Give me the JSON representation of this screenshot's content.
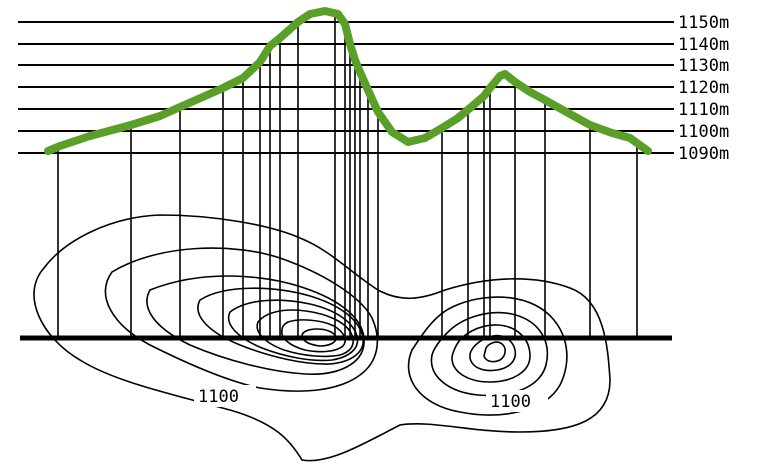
{
  "diagram": {
    "elevation_labels": [
      "1150m",
      "1140m",
      "1130m",
      "1120m",
      "1110m",
      "1100m",
      "1090m"
    ],
    "contour_value_labels": [
      "1100",
      "1100"
    ],
    "colors": {
      "background": "#ffffff",
      "lines": "#000000",
      "profile": "#5aa028"
    }
  }
}
